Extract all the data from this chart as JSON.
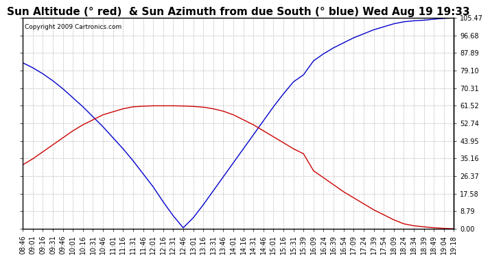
{
  "title": "Sun Altitude (° red)  & Sun Azimuth from due South (° blue) Wed Aug 19 19:33",
  "copyright": "Copyright 2009 Cartronics.com",
  "yticks": [
    0.0,
    8.79,
    17.58,
    26.37,
    35.16,
    43.95,
    52.74,
    61.52,
    70.31,
    79.1,
    87.89,
    96.68,
    105.47
  ],
  "ymin": 0.0,
  "ymax": 105.47,
  "xtick_labels": [
    "08:46",
    "09:01",
    "09:16",
    "09:31",
    "09:46",
    "10:01",
    "10:16",
    "10:31",
    "10:46",
    "11:01",
    "11:16",
    "11:31",
    "11:46",
    "12:01",
    "12:16",
    "12:31",
    "12:46",
    "13:01",
    "13:16",
    "13:31",
    "13:46",
    "14:01",
    "14:16",
    "14:31",
    "14:46",
    "15:01",
    "15:16",
    "15:31",
    "15:39",
    "16:09",
    "16:24",
    "16:39",
    "16:54",
    "17:09",
    "17:24",
    "17:39",
    "17:54",
    "18:09",
    "18:24",
    "18:34",
    "18:39",
    "18:49",
    "19:04",
    "19:18"
  ],
  "blue_y": [
    83.0,
    80.5,
    77.5,
    74.0,
    70.0,
    65.5,
    61.0,
    56.0,
    51.0,
    45.5,
    40.0,
    34.0,
    27.5,
    21.0,
    13.5,
    6.5,
    0.5,
    5.5,
    12.0,
    19.0,
    26.0,
    33.0,
    40.0,
    47.0,
    54.0,
    61.0,
    67.5,
    73.5,
    77.0,
    84.0,
    87.5,
    90.5,
    93.0,
    95.5,
    97.5,
    99.5,
    101.0,
    102.5,
    103.5,
    104.0,
    104.3,
    104.8,
    105.2,
    105.47
  ],
  "red_y": [
    32.0,
    35.0,
    38.5,
    42.0,
    45.5,
    49.0,
    52.0,
    54.5,
    57.0,
    58.5,
    60.0,
    61.0,
    61.3,
    61.5,
    61.5,
    61.5,
    61.4,
    61.2,
    60.8,
    60.0,
    58.8,
    57.0,
    54.5,
    52.0,
    49.0,
    46.0,
    43.0,
    40.0,
    37.5,
    29.0,
    25.5,
    22.0,
    18.5,
    15.5,
    12.5,
    9.5,
    7.0,
    4.5,
    2.5,
    1.5,
    1.0,
    0.5,
    0.2,
    0.0
  ],
  "blue_color": "#0000cc",
  "red_color": "#cc0000",
  "bg_color": "#ffffff",
  "grid_color": "#aaaaaa",
  "title_fontsize": 11,
  "tick_fontsize": 7,
  "copyright_fontsize": 6.5
}
